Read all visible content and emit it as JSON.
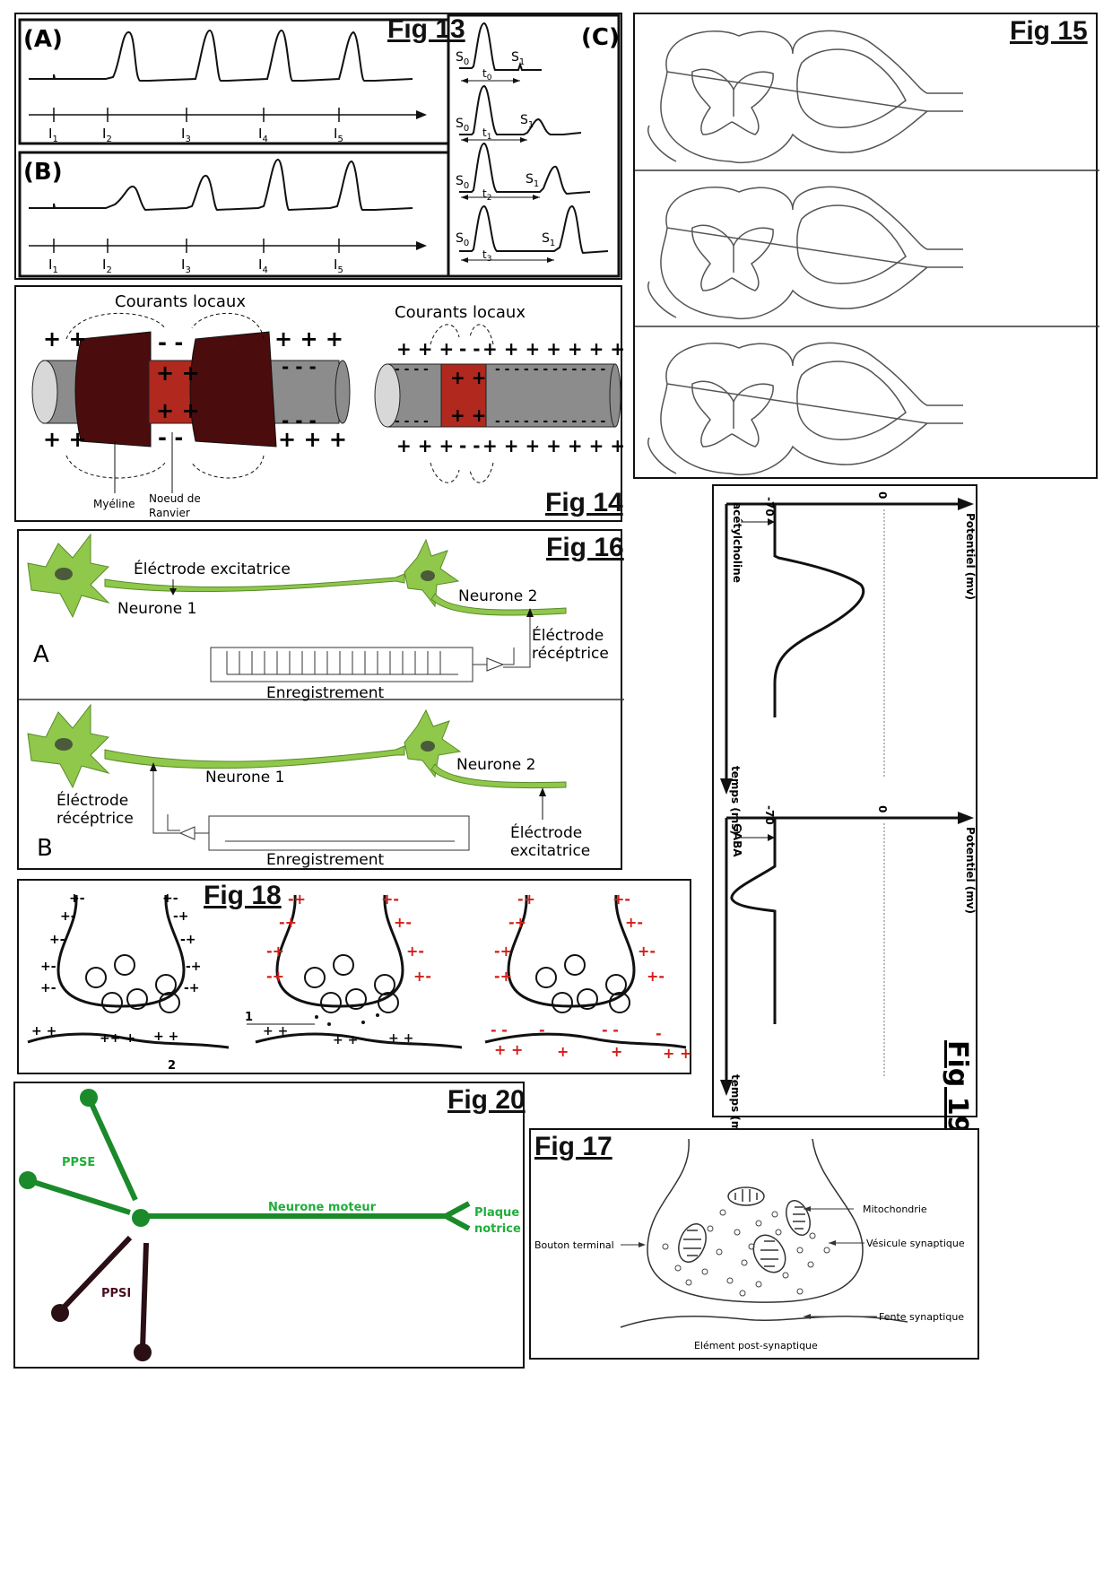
{
  "fig13": {
    "title": "Fig 13",
    "panels": {
      "a": "(A)",
      "b": "(B)",
      "c": "(C)"
    },
    "stimuli": [
      {
        "label": "I",
        "sub": "1"
      },
      {
        "label": "I",
        "sub": "2"
      },
      {
        "label": "I",
        "sub": "3"
      },
      {
        "label": "I",
        "sub": "4"
      },
      {
        "label": "I",
        "sub": "5"
      }
    ],
    "c_rows": [
      {
        "s0": "S",
        "s0_sub": "0",
        "s1": "S",
        "s1_sub": "1",
        "t": "t",
        "t_sub": "0"
      },
      {
        "s0": "S",
        "s0_sub": "0",
        "s1": "S",
        "s1_sub": "1",
        "t": "t",
        "t_sub": "1"
      },
      {
        "s0": "S",
        "s0_sub": "0",
        "s1": "S",
        "s1_sub": "1",
        "t": "t",
        "t_sub": "2"
      },
      {
        "s0": "S",
        "s0_sub": "0",
        "s1": "S",
        "s1_sub": "1",
        "t": "t",
        "t_sub": "3"
      }
    ]
  },
  "fig14": {
    "title": "Fig 14",
    "left_heading": "Courants locaux",
    "right_heading": "Courants locaux",
    "myelin_label": "Myéline",
    "node_label_line1": "Noeud de",
    "node_label_line2": "Ranvier",
    "colors": {
      "myelin": "#4a0c0c",
      "node": "#b0281e",
      "axon": "#8c8c8c"
    }
  },
  "fig15": {
    "title": "Fig 15"
  },
  "fig16": {
    "title": "Fig 16",
    "a": {
      "letter": "A",
      "excit_electrode": "Éléctrode excitatrice",
      "neuron1": "Neurone 1",
      "neuron2": "Neurone 2",
      "recep_line1": "Éléctrode",
      "recep_line2": "récéptrice",
      "record": "Enregistrement"
    },
    "b": {
      "letter": "B",
      "neuron1": "Neurone 1",
      "neuron2": "Neurone 2",
      "recep_line1": "Éléctrode",
      "recep_line2": "récéptrice",
      "excit_line1": "Éléctrode",
      "excit_line2": "excitatrice",
      "record": "Enregistrement"
    },
    "colors": {
      "neuron": "#8fc84a",
      "nucleus": "#4a5a3a"
    }
  },
  "fig17": {
    "title": "Fig 17",
    "mitochondria": "Mitochondrie",
    "terminal": "Bouton terminal",
    "vesicle": "Vésicule synaptique",
    "cleft": "Fente synaptique",
    "post": "Elément post-synaptique"
  },
  "fig18": {
    "title": "Fig 18",
    "label1": "1",
    "label2": "2",
    "colors": {
      "charge": "#d0201a"
    }
  },
  "fig19": {
    "title": "Fig 19",
    "top": {
      "v_start": "-70",
      "v_zero": "0",
      "y_axis": "Potentiel (mv)",
      "x_axis": "temps (ms)",
      "substance": "acétylcholine"
    },
    "bottom": {
      "v_start": "-70",
      "v_zero": "0",
      "y_axis": "Potentiel (mv)",
      "x_axis": "temps (ms)",
      "substance": "GABA"
    }
  },
  "fig20": {
    "title": "Fig 20",
    "ppse": "PPSE",
    "ppsi": "PPSI",
    "motor": "Neurone moteur",
    "plate_line1": "Plaque",
    "plate_line2": "notrice",
    "colors": {
      "excit": "#1a8a2a",
      "inhib": "#2a0f14",
      "text_excit": "#1fae3a",
      "text_inhib": "#4a0f1f"
    }
  }
}
